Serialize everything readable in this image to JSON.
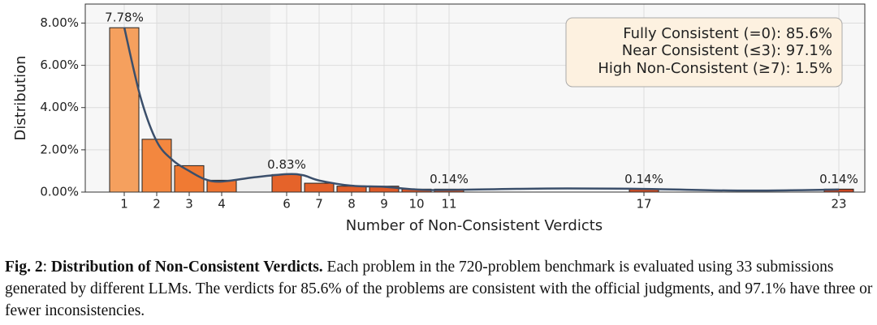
{
  "chart_data": {
    "type": "bar",
    "x_label": "Number of Non-Consistent Verdicts",
    "y_label": "Distribution",
    "x": [
      1,
      2,
      3,
      4,
      6,
      7,
      8,
      9,
      10,
      11,
      17,
      23
    ],
    "values": [
      7.78,
      2.5,
      1.25,
      0.56,
      0.83,
      0.42,
      0.28,
      0.28,
      0.14,
      0.14,
      0.14,
      0.14
    ],
    "value_labels": [
      "7.78%",
      null,
      null,
      null,
      "0.83%",
      null,
      null,
      null,
      null,
      "0.14%",
      "0.14%",
      "0.14%"
    ],
    "colors": [
      "#f5a05e",
      "#f3873f",
      "#f07a33",
      "#ee732f",
      "#e5632a",
      "#e36029",
      "#e05d28",
      "#de5a27",
      "#d95526",
      "#d65325",
      "#cf4c23",
      "#c94622"
    ],
    "xlim": [
      -0.2,
      23.8
    ],
    "ylim": [
      0,
      8.9
    ],
    "xticks": [
      1,
      2,
      3,
      4,
      6,
      7,
      8,
      9,
      10,
      11,
      17,
      23
    ],
    "yticks": [
      {
        "value": 0,
        "label": "0.00%"
      },
      {
        "value": 2,
        "label": "2.00%"
      },
      {
        "value": 4,
        "label": "4.00%"
      },
      {
        "value": 6,
        "label": "6.00%"
      },
      {
        "value": 8,
        "label": "8.00%"
      }
    ],
    "grid": true,
    "kde_curve": {
      "color": "#3b4f6b",
      "x": [
        1,
        1.5,
        2,
        2.5,
        3,
        3.5,
        4,
        5,
        6,
        6.5,
        7,
        8,
        9,
        10,
        11,
        14,
        17,
        20,
        23
      ],
      "values": [
        7.8,
        4.5,
        2.4,
        1.5,
        1.0,
        0.6,
        0.5,
        0.7,
        0.85,
        0.8,
        0.55,
        0.3,
        0.25,
        0.12,
        0.1,
        0.17,
        0.15,
        0.07,
        0.12
      ]
    },
    "annotation": [
      "Fully Consistent (=0): 85.6%",
      "Near Consistent (≤3): 97.1%",
      "High Non-Consistent (≥7): 1.5%"
    ]
  },
  "caption": [
    {
      "text": "Fig. 2",
      "bold": true
    },
    {
      "text": ": ",
      "bold": false
    },
    {
      "text": "Distribution of Non-Consistent Verdicts.",
      "bold": true
    },
    {
      "text": " Each problem in the 720-problem benchmark is evaluated using 33 submissions generated by different LLMs. The verdicts for 85.6% of the problems are consistent with the official judgments, and 97.1% have three or fewer inconsistencies.",
      "bold": false
    }
  ]
}
